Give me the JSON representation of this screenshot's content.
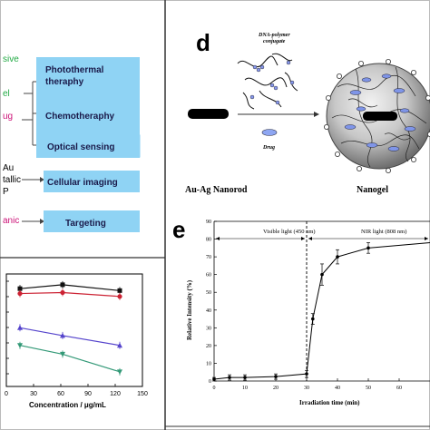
{
  "left_labels": [
    "sive",
    "el",
    "ug",
    "Au",
    "tallic",
    "P",
    "anic"
  ],
  "boxes": [
    "Photothermal\ntheraphy",
    "Chemotheraphy",
    "Optical sensing",
    "Cellular imaging",
    "Targeting"
  ],
  "panel_d": {
    "letter": "d",
    "conjugate_label": "DNA-polymer\nconjugate",
    "drug_label": "Drug",
    "nanorod_label": "Au-Ag Nanorod",
    "nanogel_label": "Nanogel"
  },
  "panel_e": {
    "letter": "e",
    "visible_label": "Visible light (450 nm)",
    "nir_label": "NIR light (808 nm)"
  },
  "chart_data": [
    {
      "type": "line",
      "xlabel": "Concentration  / μg/mL",
      "xlim": [
        0,
        150
      ],
      "xticks": [
        0,
        30,
        60,
        90,
        120,
        150
      ],
      "x": [
        15,
        62,
        125
      ],
      "series": [
        {
          "values": [
            100,
            104,
            98
          ],
          "color": "#111111",
          "marker": "square"
        },
        {
          "values": [
            95,
            96,
            92
          ],
          "color": "#cc2233",
          "marker": "circle"
        },
        {
          "values": [
            60,
            52,
            42
          ],
          "color": "#5544cc",
          "marker": "triangle-up"
        },
        {
          "values": [
            42,
            33,
            15
          ],
          "color": "#339977",
          "marker": "triangle-down"
        }
      ]
    },
    {
      "type": "line",
      "xlabel": "Irradiation time (min)",
      "ylabel": "Relative Intensity (%)",
      "xlim": [
        0,
        70
      ],
      "ylim": [
        0,
        90
      ],
      "xticks": [
        0,
        10,
        20,
        30,
        40,
        50,
        60
      ],
      "yticks": [
        0,
        10,
        20,
        30,
        40,
        50,
        60,
        70,
        80,
        90
      ],
      "series": [
        {
          "x": [
            0,
            5,
            10,
            20,
            30,
            32,
            35,
            40,
            50,
            70
          ],
          "y": [
            1,
            2,
            2,
            2.5,
            4,
            35,
            60,
            70,
            75,
            78
          ],
          "err": [
            1,
            1.5,
            1.5,
            1.5,
            2,
            3,
            6,
            4,
            3,
            0
          ],
          "color": "#000000"
        }
      ],
      "divider_x": 30
    }
  ]
}
